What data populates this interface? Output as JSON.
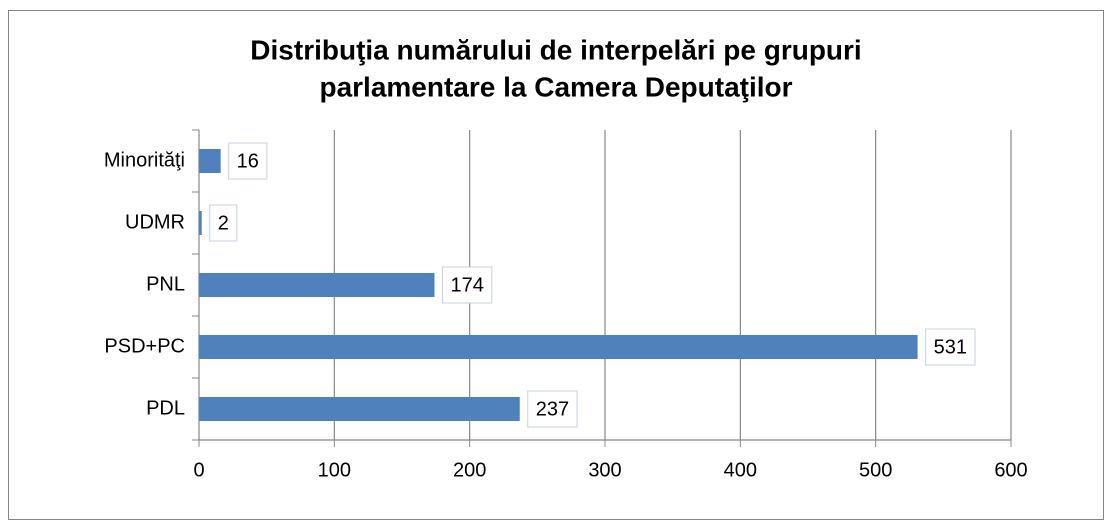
{
  "chart_data": {
    "type": "barh",
    "title": [
      "Distribuţia numărului de interpelări pe grupuri",
      "parlamentare la Camera Deputaţilor"
    ],
    "categories": [
      "Minorităţi",
      "UDMR",
      "PNL",
      "PSD+PC",
      "PDL"
    ],
    "values": [
      16,
      2,
      174,
      531,
      237
    ],
    "color": "#4f81bd",
    "xlim": [
      0,
      600
    ],
    "xticks": [
      0,
      100,
      200,
      300,
      400,
      500,
      600
    ],
    "grid": true
  }
}
